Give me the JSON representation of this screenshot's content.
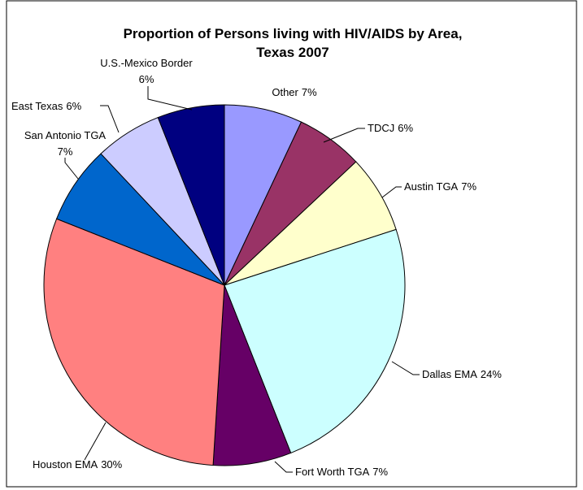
{
  "chart_data": {
    "type": "pie",
    "title": [
      "Proportion of Persons living with HIV/AIDS by Area,",
      "Texas 2007"
    ],
    "categories": [
      "Other",
      "TDCJ",
      "Austin TGA",
      "Dallas EMA",
      "Fort Worth TGA",
      "Houston EMA",
      "San Antonio TGA",
      "East Texas",
      "U.S.-Mexico Border"
    ],
    "values": [
      7,
      6,
      7,
      24,
      7,
      30,
      7,
      6,
      6
    ],
    "value_labels": [
      "7%",
      "6%",
      "7%",
      "24%",
      "7%",
      "30%",
      "7%",
      "6%",
      "6%"
    ],
    "colors": [
      "#9999ff",
      "#993366",
      "#ffffcc",
      "#ccffff",
      "#660066",
      "#ff8080",
      "#0066cc",
      "#ccccff",
      "#000080"
    ]
  }
}
